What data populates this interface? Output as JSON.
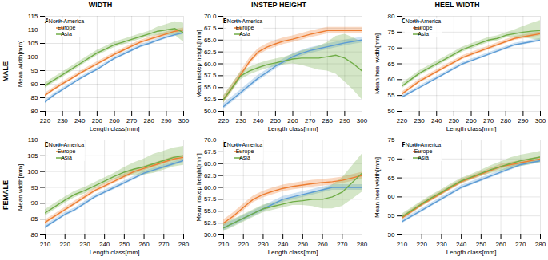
{
  "chart_data": [
    {
      "type": "line",
      "title": "WIDTH",
      "row_label": "MALE",
      "annotations": [
        {
          "text": "A"
        }
      ],
      "x": [
        220,
        225,
        230,
        235,
        240,
        245,
        250,
        255,
        260,
        265,
        270,
        275,
        280,
        285,
        290,
        295,
        300
      ],
      "xlim": [
        220,
        300
      ],
      "xticks": [
        220,
        230,
        240,
        250,
        260,
        270,
        280,
        290,
        300
      ],
      "xlabel": "Length class[mm]",
      "ylabel": "Mean width[mm]",
      "ylim": [
        80,
        115
      ],
      "yticks": [
        80,
        85,
        90,
        95,
        100,
        105,
        110,
        115
      ],
      "grid": true,
      "legend": "upper left",
      "series": [
        {
          "name": "North America",
          "color": "#5b9bd5",
          "values": [
            83.5,
            86.0,
            88.0,
            90.0,
            92.0,
            93.8,
            95.5,
            97.5,
            99.5,
            101.0,
            102.5,
            104.0,
            105.0,
            106.2,
            107.3,
            108.2,
            109.0
          ],
          "std": [
            0.6,
            0.6,
            0.6,
            0.6,
            0.6,
            0.6,
            0.6,
            0.6,
            0.6,
            0.6,
            0.6,
            0.6,
            0.6,
            0.6,
            0.6,
            0.6,
            0.6
          ]
        },
        {
          "name": "Europe",
          "color": "#ed7d31",
          "values": [
            86.0,
            88.2,
            90.2,
            92.0,
            94.0,
            95.8,
            97.5,
            99.2,
            101.0,
            102.5,
            104.0,
            105.5,
            106.5,
            107.5,
            108.5,
            109.5,
            110.0
          ],
          "std": [
            0.7,
            0.7,
            0.7,
            0.7,
            0.7,
            0.7,
            0.7,
            0.7,
            0.7,
            0.7,
            0.7,
            0.7,
            0.7,
            0.7,
            0.7,
            0.7,
            0.7
          ]
        },
        {
          "name": "Asia",
          "color": "#70ad47",
          "values": [
            89.5,
            91.5,
            93.5,
            95.5,
            97.5,
            99.5,
            101.5,
            103.0,
            104.5,
            105.5,
            106.5,
            107.5,
            108.5,
            109.5,
            110.0,
            110.5,
            109.0
          ],
          "std": [
            1.0,
            1.0,
            1.0,
            1.0,
            1.0,
            1.0,
            1.0,
            1.0,
            1.0,
            1.0,
            1.0,
            1.0,
            1.0,
            1.5,
            2.0,
            2.5,
            3.5
          ]
        }
      ]
    },
    {
      "type": "line",
      "title": "INSTEP HEIGHT",
      "annotations": [
        {
          "text": "B"
        }
      ],
      "x": [
        220,
        225,
        230,
        235,
        240,
        245,
        250,
        255,
        260,
        265,
        270,
        275,
        280,
        285,
        290,
        295,
        300
      ],
      "xlim": [
        220,
        300
      ],
      "xticks": [
        220,
        230,
        240,
        250,
        260,
        270,
        280,
        290,
        300
      ],
      "xlabel": "Length class[mm]",
      "ylabel": "Mean instep height[mm]",
      "ylim": [
        50,
        70
      ],
      "yticks": [
        {
          "value": 50,
          "label": "50.0"
        },
        52.5,
        {
          "value": 55,
          "label": "55.0"
        },
        57.5,
        {
          "value": 60,
          "label": "60.0"
        },
        62.5,
        {
          "value": 65,
          "label": "65.0"
        },
        67.5,
        {
          "value": 70,
          "label": "70.0"
        }
      ],
      "grid": true,
      "legend": "upper left",
      "series": [
        {
          "name": "North America",
          "color": "#5b9bd5",
          "values": [
            51.0,
            52.5,
            54.0,
            55.5,
            57.0,
            58.2,
            59.5,
            60.5,
            61.5,
            62.2,
            62.8,
            63.2,
            63.6,
            64.0,
            64.4,
            64.7,
            65.0
          ],
          "std": [
            0.6,
            0.6,
            0.6,
            0.6,
            0.6,
            0.6,
            0.6,
            0.6,
            0.6,
            0.6,
            0.6,
            0.6,
            0.6,
            0.6,
            0.6,
            0.6,
            0.6
          ]
        },
        {
          "name": "Europe",
          "color": "#ed7d31",
          "values": [
            52.5,
            55.0,
            57.8,
            60.5,
            62.5,
            63.5,
            64.2,
            64.8,
            65.2,
            65.7,
            66.2,
            66.6,
            67.0,
            67.0,
            67.0,
            67.0,
            67.0
          ],
          "std": [
            0.7,
            0.7,
            0.7,
            0.7,
            0.7,
            0.7,
            0.7,
            0.7,
            0.7,
            0.7,
            0.7,
            0.7,
            0.7,
            0.7,
            0.7,
            0.7,
            0.7
          ]
        },
        {
          "name": "Asia",
          "color": "#70ad47",
          "values": [
            52.5,
            55.0,
            57.5,
            58.5,
            59.2,
            59.8,
            60.2,
            60.6,
            61.0,
            61.2,
            61.2,
            61.2,
            61.5,
            61.8,
            61.2,
            60.0,
            58.5
          ],
          "std": [
            0.8,
            0.8,
            0.8,
            0.8,
            0.8,
            0.8,
            0.8,
            0.8,
            1.0,
            1.5,
            2.0,
            2.5,
            3.0,
            4.0,
            5.0,
            5.5,
            6.0
          ]
        }
      ]
    },
    {
      "type": "line",
      "title": "HEEL WIDTH",
      "annotations": [
        {
          "text": "C"
        }
      ],
      "x": [
        220,
        225,
        230,
        235,
        240,
        245,
        250,
        255,
        260,
        265,
        270,
        275,
        280,
        285,
        290,
        295,
        300
      ],
      "xlim": [
        220,
        300
      ],
      "xticks": [
        220,
        230,
        240,
        250,
        260,
        270,
        280,
        290,
        300
      ],
      "xlabel": "Length class[mm]",
      "ylabel": "Mean heel width[mm]",
      "ylim": [
        50,
        80
      ],
      "yticks": [
        50,
        55,
        60,
        65,
        70,
        75,
        80
      ],
      "grid": true,
      "legend": "upper left",
      "series": [
        {
          "name": "North America",
          "color": "#5b9bd5",
          "values": [
            54.5,
            56.0,
            57.5,
            59.0,
            60.5,
            62.0,
            63.5,
            65.0,
            66.0,
            67.0,
            68.0,
            69.0,
            70.0,
            71.0,
            71.5,
            72.0,
            72.5
          ],
          "std": [
            0.5,
            0.5,
            0.5,
            0.5,
            0.5,
            0.5,
            0.5,
            0.5,
            0.5,
            0.5,
            0.5,
            0.5,
            0.5,
            0.5,
            0.5,
            0.5,
            0.5
          ]
        },
        {
          "name": "Europe",
          "color": "#ed7d31",
          "values": [
            55.5,
            57.5,
            59.5,
            61.0,
            62.5,
            64.0,
            65.5,
            67.0,
            68.0,
            69.0,
            70.0,
            71.0,
            72.0,
            73.0,
            73.5,
            74.0,
            74.5
          ],
          "std": [
            0.6,
            0.6,
            0.6,
            0.6,
            0.6,
            0.6,
            0.6,
            0.6,
            0.6,
            0.6,
            0.6,
            0.6,
            0.6,
            0.6,
            0.6,
            0.6,
            0.6
          ]
        },
        {
          "name": "Asia",
          "color": "#70ad47",
          "values": [
            58.0,
            60.0,
            62.0,
            63.5,
            65.0,
            66.5,
            68.0,
            69.5,
            70.5,
            71.5,
            72.5,
            73.0,
            74.0,
            74.5,
            75.0,
            75.3,
            75.5
          ],
          "std": [
            0.8,
            0.8,
            0.8,
            0.8,
            0.8,
            0.8,
            0.8,
            0.8,
            0.8,
            0.8,
            0.8,
            0.8,
            0.8,
            1.2,
            1.8,
            2.5,
            3.2
          ]
        }
      ]
    },
    {
      "type": "line",
      "row_label": "FEMALE",
      "annotations": [
        {
          "text": "D"
        }
      ],
      "x": [
        210,
        215,
        220,
        225,
        230,
        235,
        240,
        245,
        250,
        255,
        260,
        265,
        270,
        275,
        280
      ],
      "xlim": [
        210,
        280
      ],
      "xticks": [
        210,
        220,
        230,
        240,
        250,
        260,
        270,
        280
      ],
      "xlabel": "Length class[mm]",
      "ylabel": "Mean width[mm]",
      "ylim": [
        80,
        110
      ],
      "yticks": [
        80,
        85,
        90,
        95,
        100,
        105,
        110
      ],
      "grid": true,
      "legend": "upper left",
      "series": [
        {
          "name": "North America",
          "color": "#5b9bd5",
          "values": [
            82.5,
            84.5,
            86.5,
            88.0,
            90.0,
            92.0,
            93.5,
            95.0,
            96.5,
            98.0,
            99.5,
            100.5,
            101.5,
            102.5,
            103.5
          ],
          "std": [
            0.6,
            0.6,
            0.6,
            0.6,
            0.6,
            0.6,
            0.6,
            0.6,
            0.6,
            0.6,
            0.6,
            0.6,
            0.6,
            0.6,
            0.6
          ]
        },
        {
          "name": "Europe",
          "color": "#ed7d31",
          "values": [
            84.0,
            86.0,
            88.0,
            90.0,
            92.0,
            94.0,
            95.5,
            97.0,
            98.5,
            100.0,
            101.0,
            102.0,
            103.0,
            104.0,
            104.5
          ],
          "std": [
            0.7,
            0.7,
            0.7,
            0.7,
            0.7,
            0.7,
            0.7,
            0.7,
            0.7,
            0.7,
            0.7,
            0.7,
            0.7,
            0.7,
            0.7
          ]
        },
        {
          "name": "Asia",
          "color": "#70ad47",
          "values": [
            87.0,
            89.0,
            91.0,
            92.8,
            94.0,
            95.5,
            97.0,
            98.5,
            99.8,
            100.8,
            101.5,
            102.5,
            103.5,
            104.5,
            105.0
          ],
          "std": [
            1.0,
            1.0,
            1.0,
            1.0,
            1.0,
            1.0,
            1.0,
            1.0,
            1.5,
            2.0,
            2.5,
            3.0,
            3.0,
            3.0,
            3.0
          ]
        }
      ]
    },
    {
      "type": "line",
      "annotations": [
        {
          "text": "E"
        }
      ],
      "x": [
        210,
        215,
        220,
        225,
        230,
        235,
        240,
        245,
        250,
        255,
        260,
        265,
        270,
        275,
        280
      ],
      "xlim": [
        210,
        280
      ],
      "xticks": [
        210,
        220,
        230,
        240,
        250,
        260,
        270,
        280
      ],
      "xlabel": "Length class[mm]",
      "ylabel": "Mean instep height[mm]",
      "ylim": [
        50,
        70
      ],
      "yticks": [
        {
          "value": 50,
          "label": "50.0"
        },
        52.5,
        {
          "value": 55,
          "label": "55.0"
        },
        57.5,
        {
          "value": 60,
          "label": "60.0"
        },
        62.5,
        {
          "value": 65,
          "label": "65.0"
        },
        67.5,
        {
          "value": 70,
          "label": "70.0"
        }
      ],
      "grid": true,
      "legend": "upper left",
      "series": [
        {
          "name": "North America",
          "color": "#5b9bd5",
          "values": [
            51.5,
            52.5,
            53.5,
            54.5,
            55.5,
            56.5,
            57.5,
            58.0,
            58.5,
            59.0,
            59.5,
            60.0,
            60.0,
            60.0,
            60.0
          ],
          "std": [
            0.6,
            0.6,
            0.6,
            0.6,
            0.6,
            0.6,
            0.6,
            0.6,
            0.6,
            0.6,
            0.6,
            0.6,
            0.6,
            0.6,
            0.6
          ]
        },
        {
          "name": "Europe",
          "color": "#ed7d31",
          "values": [
            52.5,
            54.0,
            55.8,
            57.5,
            58.5,
            59.2,
            59.8,
            60.2,
            60.5,
            60.8,
            61.0,
            61.2,
            61.5,
            62.0,
            62.5
          ],
          "std": [
            0.7,
            0.7,
            0.7,
            0.7,
            0.7,
            0.7,
            0.7,
            0.7,
            0.7,
            0.7,
            0.7,
            0.7,
            0.7,
            0.7,
            0.7
          ]
        },
        {
          "name": "Asia",
          "color": "#70ad47",
          "values": [
            51.5,
            52.5,
            53.5,
            54.5,
            55.5,
            56.0,
            56.5,
            57.0,
            57.2,
            57.5,
            57.5,
            58.0,
            59.0,
            61.0,
            63.0
          ],
          "std": [
            0.8,
            0.8,
            0.8,
            0.8,
            0.8,
            0.8,
            0.8,
            0.8,
            1.0,
            1.5,
            2.0,
            2.5,
            3.0,
            3.5,
            4.0
          ]
        }
      ]
    },
    {
      "type": "line",
      "annotations": [
        {
          "text": "F"
        }
      ],
      "x": [
        210,
        215,
        220,
        225,
        230,
        235,
        240,
        245,
        250,
        255,
        260,
        265,
        270,
        275,
        280
      ],
      "xlim": [
        210,
        280
      ],
      "xticks": [
        210,
        220,
        230,
        240,
        250,
        260,
        270,
        280
      ],
      "xlabel": "Length class[mm]",
      "ylabel": "Mean heel width[mm]",
      "ylim": [
        50,
        75
      ],
      "yticks": [
        50,
        55,
        60,
        65,
        70,
        75
      ],
      "grid": true,
      "legend": "upper left",
      "series": [
        {
          "name": "North America",
          "color": "#5b9bd5",
          "values": [
            53.5,
            55.0,
            56.5,
            58.0,
            59.5,
            61.0,
            62.5,
            63.5,
            64.5,
            65.5,
            66.5,
            67.5,
            68.5,
            69.0,
            69.5
          ],
          "std": [
            0.5,
            0.5,
            0.5,
            0.5,
            0.5,
            0.5,
            0.5,
            0.5,
            0.5,
            0.5,
            0.5,
            0.5,
            0.5,
            0.5,
            0.5
          ]
        },
        {
          "name": "Europe",
          "color": "#ed7d31",
          "values": [
            54.5,
            56.2,
            58.0,
            59.5,
            61.0,
            62.5,
            64.0,
            65.0,
            66.0,
            67.0,
            68.0,
            68.5,
            69.0,
            69.5,
            70.0
          ],
          "std": [
            0.6,
            0.6,
            0.6,
            0.6,
            0.6,
            0.6,
            0.6,
            0.6,
            0.6,
            0.6,
            0.6,
            0.6,
            0.6,
            0.6,
            0.6
          ]
        },
        {
          "name": "Asia",
          "color": "#70ad47",
          "values": [
            54.8,
            56.5,
            58.2,
            59.8,
            61.2,
            62.8,
            64.2,
            65.2,
            66.2,
            67.2,
            68.0,
            68.8,
            69.5,
            70.0,
            70.5
          ],
          "std": [
            0.7,
            0.7,
            0.7,
            0.7,
            0.7,
            0.7,
            0.7,
            0.7,
            0.8,
            1.0,
            1.2,
            1.5,
            1.5,
            1.5,
            1.5
          ]
        }
      ]
    }
  ]
}
